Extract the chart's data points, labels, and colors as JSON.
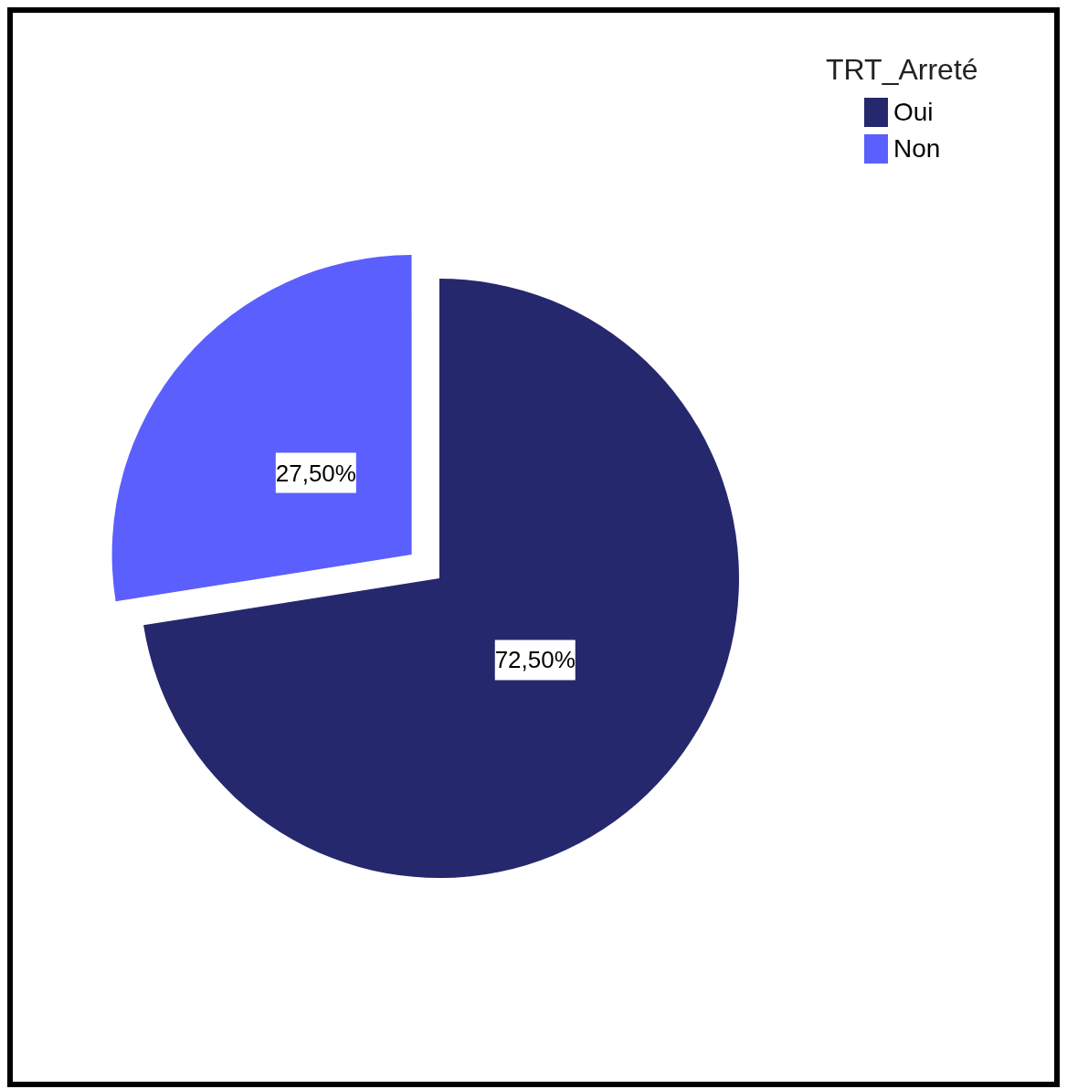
{
  "chart_data": {
    "type": "pie",
    "legend_title": "TRT_Arreté",
    "categories": [
      "Oui",
      "Non"
    ],
    "values": [
      72.5,
      27.5
    ],
    "colors": [
      "#26286e",
      "#5b5ffd"
    ],
    "value_labels": [
      "72,50%",
      "27,50%"
    ],
    "legend": "top right"
  }
}
